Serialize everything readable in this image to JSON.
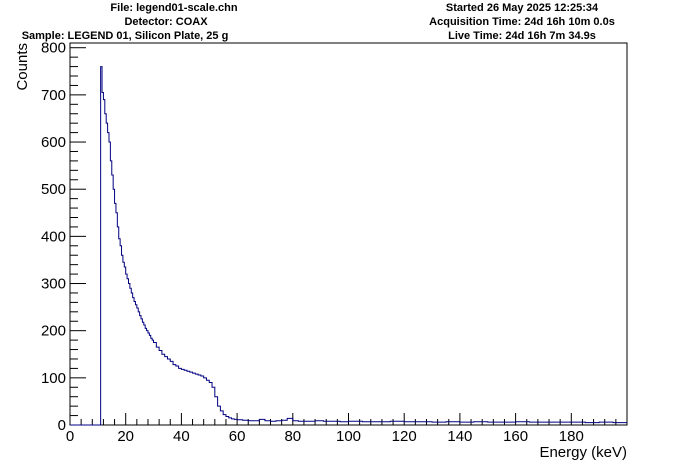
{
  "header": {
    "file": "File: legend01-scale.chn",
    "detector": "Detector: COAX",
    "sample": "Sample: LEGEND 01, Silicon Plate, 25 g",
    "started": "Started 26 May 2025 12:25:34",
    "acquisition": "Acquisition Time: 24d 16h 10m 0.0s",
    "live": "Live Time: 24d 16h 7m 34.9s"
  },
  "chart_data": {
    "type": "line",
    "title": "",
    "xlabel": "Energy (keV)",
    "ylabel": "Counts",
    "xlim": [
      0,
      200
    ],
    "ylim": [
      0,
      810
    ],
    "xticks": [
      0,
      20,
      40,
      60,
      80,
      100,
      120,
      140,
      160,
      180
    ],
    "yticks": [
      0,
      100,
      200,
      300,
      400,
      500,
      600,
      700,
      800
    ],
    "grid": false,
    "line_color": "#000080",
    "series": [
      {
        "x": [
          0,
          10.7,
          11.0,
          11.5,
          12.0,
          12.5,
          13.0,
          13.5,
          14.0,
          14.5,
          15.0,
          15.5,
          16.0,
          16.5,
          17.0,
          17.5,
          18.0,
          18.5,
          19.0,
          19.5,
          20.0,
          20.5,
          21.0,
          21.5,
          22.0,
          22.5,
          23.0,
          23.5,
          24.0,
          24.5,
          25.0,
          25.5,
          26.0,
          26.5,
          27.0,
          27.5,
          28.0,
          28.5,
          29.0,
          29.5,
          30.0,
          31.0,
          32.0,
          33.0,
          34.0,
          35.0,
          36.0,
          37.0,
          38.0,
          39.0,
          40.0,
          41.0,
          42.0,
          43.0,
          44.0,
          45.0,
          46.0,
          47.0,
          48.0,
          49.0,
          50.0,
          51.0,
          52.0,
          53.0,
          54.0,
          55.0,
          56.0,
          57.0,
          58.0,
          59.0,
          60.0,
          62.0,
          64.0,
          66.0,
          68.0,
          70.0,
          72.0,
          74.0,
          76.0,
          78.0,
          80.0,
          82.0,
          85.0,
          88.0,
          91.0,
          94.0,
          97.0,
          100.0,
          105.0,
          110.0,
          115.0,
          120.0,
          125.0,
          130.0,
          135.0,
          140.0,
          145.0,
          150.0,
          155.0,
          160.0,
          165.0,
          170.0,
          175.0,
          180.0,
          185.0,
          190.0,
          195.0,
          200.0
        ],
        "y": [
          0,
          0,
          760,
          705,
          690,
          660,
          640,
          620,
          600,
          560,
          530,
          500,
          470,
          450,
          420,
          395,
          380,
          360,
          345,
          335,
          320,
          310,
          300,
          290,
          280,
          270,
          262,
          255,
          248,
          240,
          232,
          225,
          218,
          212,
          205,
          200,
          195,
          190,
          184,
          180,
          175,
          165,
          158,
          150,
          145,
          140,
          135,
          128,
          125,
          120,
          118,
          116,
          114,
          112,
          110,
          108,
          106,
          104,
          100,
          95,
          90,
          80,
          60,
          40,
          30,
          22,
          18,
          15,
          13,
          12,
          11,
          10,
          9,
          9,
          12,
          9,
          8,
          9,
          10,
          14,
          9,
          8,
          8,
          9,
          8,
          8,
          7,
          8,
          7,
          7,
          8,
          7,
          7,
          6,
          7,
          6,
          7,
          6,
          6,
          7,
          6,
          6,
          6,
          6,
          5,
          6,
          5,
          5
        ]
      }
    ]
  }
}
